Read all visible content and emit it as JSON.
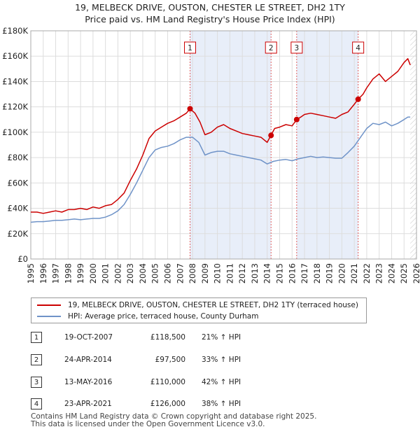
{
  "chart_data": {
    "type": "line",
    "title": "19, MELBECK DRIVE, OUSTON, CHESTER LE STREET, DH2 1TY",
    "subtitle": "Price paid vs. HM Land Registry's House Price Index (HPI)",
    "xlim": [
      1995,
      2026
    ],
    "ylim": [
      0,
      180000
    ],
    "x_ticks": [
      1995,
      1996,
      1997,
      1998,
      1999,
      2000,
      2001,
      2002,
      2003,
      2004,
      2005,
      2006,
      2007,
      2008,
      2009,
      2010,
      2011,
      2012,
      2013,
      2014,
      2015,
      2016,
      2017,
      2018,
      2019,
      2020,
      2021,
      2022,
      2023,
      2024,
      2025,
      2026
    ],
    "y_ticks": [
      {
        "value": 0,
        "label": "£0"
      },
      {
        "value": 20000,
        "label": "£20K"
      },
      {
        "value": 40000,
        "label": "£40K"
      },
      {
        "value": 60000,
        "label": "£60K"
      },
      {
        "value": 80000,
        "label": "£80K"
      },
      {
        "value": 100000,
        "label": "£100K"
      },
      {
        "value": 120000,
        "label": "£120K"
      },
      {
        "value": 140000,
        "label": "£140K"
      },
      {
        "value": 160000,
        "label": "£160K"
      },
      {
        "value": 180000,
        "label": "£180K"
      }
    ],
    "series": [
      {
        "name": "19, MELBECK DRIVE, OUSTON, CHESTER LE STREET, DH2 1TY (terraced house)",
        "color": "#cc0000",
        "x": [
          1995,
          1995.5,
          1996,
          1996.5,
          1997,
          1997.5,
          1998,
          1998.5,
          1999,
          1999.5,
          2000,
          2000.5,
          2001,
          2001.5,
          2002,
          2002.5,
          2003,
          2003.5,
          2004,
          2004.5,
          2005,
          2005.5,
          2006,
          2006.5,
          2007,
          2007.5,
          2007.8,
          2008.2,
          2008.6,
          2009,
          2009.5,
          2010,
          2010.5,
          2011,
          2011.5,
          2012,
          2012.5,
          2013,
          2013.5,
          2014,
          2014.3,
          2014.6,
          2015,
          2015.5,
          2016,
          2016.37,
          2016.7,
          2017,
          2017.5,
          2018,
          2018.5,
          2019,
          2019.5,
          2020,
          2020.5,
          2021,
          2021.31,
          2021.7,
          2022,
          2022.5,
          2023,
          2023.5,
          2024,
          2024.5,
          2025,
          2025.3,
          2025.5
        ],
        "y": [
          37000,
          37000,
          36000,
          37000,
          38000,
          37000,
          39000,
          39000,
          40000,
          39000,
          41000,
          40000,
          42000,
          43000,
          47000,
          52000,
          62000,
          71000,
          82000,
          95000,
          101000,
          104000,
          107000,
          109000,
          112000,
          115000,
          118500,
          115000,
          108000,
          98000,
          100000,
          104000,
          106000,
          103000,
          101000,
          99000,
          98000,
          97000,
          96000,
          92000,
          97500,
          103000,
          104000,
          106000,
          105000,
          110000,
          112000,
          114000,
          115000,
          114000,
          113000,
          112000,
          111000,
          114000,
          116000,
          122000,
          126000,
          130000,
          135000,
          142000,
          146000,
          140000,
          144000,
          148000,
          155000,
          158000,
          153000
        ]
      },
      {
        "name": "HPI: Average price, terraced house, County Durham",
        "color": "#6f93c8",
        "x": [
          1995,
          1995.5,
          1996,
          1996.5,
          1997,
          1997.5,
          1998,
          1998.5,
          1999,
          1999.5,
          2000,
          2000.5,
          2001,
          2001.5,
          2002,
          2002.5,
          2003,
          2003.5,
          2004,
          2004.5,
          2005,
          2005.5,
          2006,
          2006.5,
          2007,
          2007.5,
          2008,
          2008.5,
          2009,
          2009.5,
          2010,
          2010.5,
          2011,
          2011.5,
          2012,
          2012.5,
          2013,
          2013.5,
          2014,
          2014.5,
          2015,
          2015.5,
          2016,
          2016.5,
          2017,
          2017.5,
          2018,
          2018.5,
          2019,
          2019.5,
          2020,
          2020.5,
          2021,
          2021.5,
          2022,
          2022.5,
          2023,
          2023.5,
          2024,
          2024.5,
          2025,
          2025.3,
          2025.5
        ],
        "y": [
          29000,
          29500,
          29500,
          30000,
          30500,
          30500,
          31000,
          31500,
          31000,
          31500,
          32000,
          32000,
          33000,
          35000,
          38000,
          43000,
          51000,
          60000,
          70000,
          80000,
          86000,
          88000,
          89000,
          91000,
          94000,
          96000,
          96000,
          92000,
          82000,
          84000,
          85000,
          85000,
          83000,
          82000,
          81000,
          80000,
          79000,
          78000,
          75000,
          77000,
          78000,
          78500,
          77500,
          79000,
          80000,
          81000,
          80000,
          80500,
          80000,
          79500,
          79500,
          84000,
          89000,
          96000,
          103000,
          107000,
          106000,
          108000,
          105000,
          107000,
          110000,
          112000,
          112000
        ]
      }
    ],
    "transactions": [
      {
        "num": "1",
        "x": 2007.8,
        "y": 118500
      },
      {
        "num": "2",
        "x": 2014.31,
        "y": 97500
      },
      {
        "num": "3",
        "x": 2016.37,
        "y": 110000
      },
      {
        "num": "4",
        "x": 2021.31,
        "y": 126000
      }
    ],
    "shaded_ranges": [
      [
        2007.8,
        2014.31
      ],
      [
        2016.37,
        2021.31
      ]
    ],
    "future_from": 2025.5
  },
  "legend": {
    "red_label": "19, MELBECK DRIVE, OUSTON, CHESTER LE STREET, DH2 1TY (terraced house)",
    "blue_label": "HPI: Average price, terraced house, County Durham"
  },
  "table": {
    "rows": [
      {
        "num": "1",
        "date": "19-OCT-2007",
        "price": "£118,500",
        "hpi": "21% ↑ HPI"
      },
      {
        "num": "2",
        "date": "24-APR-2014",
        "price": "£97,500",
        "hpi": "33% ↑ HPI"
      },
      {
        "num": "3",
        "date": "13-MAY-2016",
        "price": "£110,000",
        "hpi": "42% ↑ HPI"
      },
      {
        "num": "4",
        "date": "23-APR-2021",
        "price": "£126,000",
        "hpi": "38% ↑ HPI"
      }
    ]
  },
  "footer": {
    "line1": "Contains HM Land Registry data © Crown copyright and database right 2025.",
    "line2": "This data is licensed under the Open Government Licence v3.0."
  }
}
